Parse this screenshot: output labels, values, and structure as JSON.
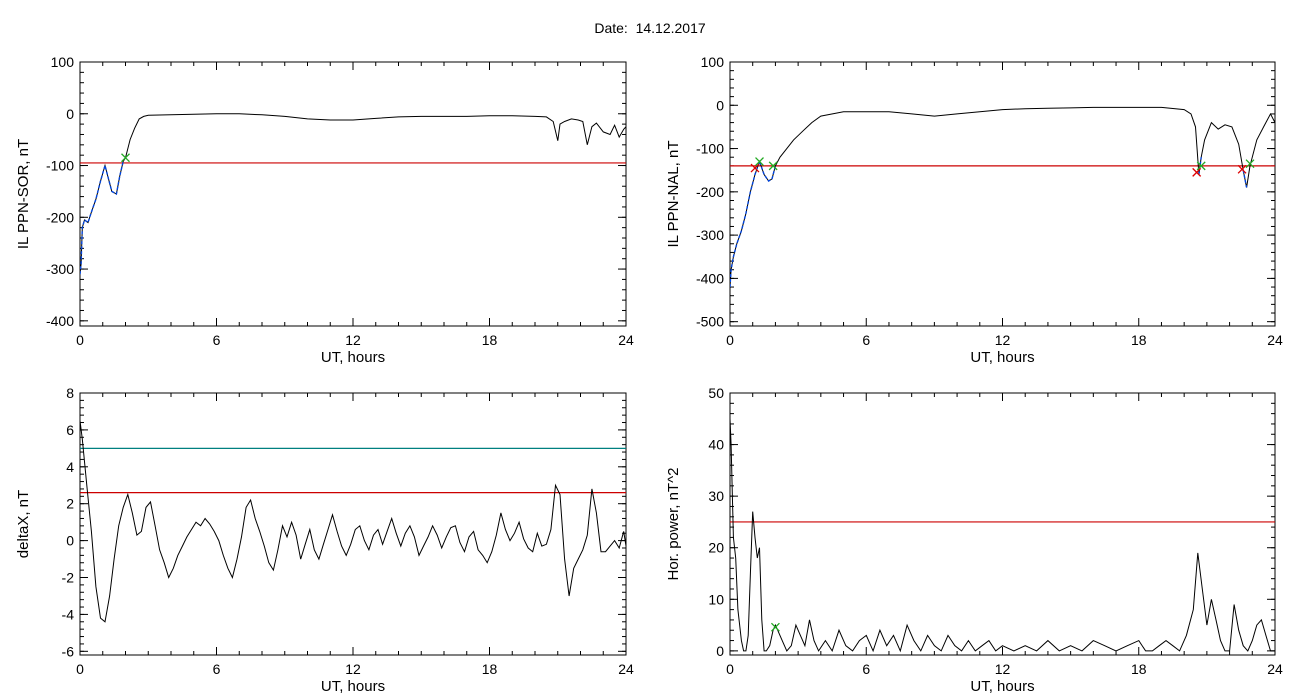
{
  "header": {
    "date_label": "Date:",
    "date_value": "14.12.2017"
  },
  "colors": {
    "trace": "#000000",
    "threshold_red": "#cc0000",
    "threshold_teal": "#008080",
    "segment_blue": "#0044dd",
    "marker_green": "#22aa22",
    "marker_red": "#dd0000"
  },
  "chart_data": [
    {
      "type": "line",
      "title": "",
      "xlabel": "UT, hours",
      "ylabel": "IL PPN-SOR, nT",
      "xlim": [
        0,
        24
      ],
      "ylim": [
        -410,
        100
      ],
      "xticks": [
        0,
        6,
        12,
        18,
        24
      ],
      "yticks": [
        -400,
        -300,
        -200,
        -100,
        0,
        100
      ],
      "threshold": {
        "value": -95,
        "color": "#cc0000"
      },
      "series": [
        {
          "x": [
            0,
            0.05,
            0.1,
            0.2,
            0.35,
            0.5,
            0.7,
            0.9,
            1.1,
            1.25,
            1.4,
            1.6,
            1.75,
            1.9,
            2.0,
            2.2,
            2.4,
            2.6,
            2.8,
            3,
            4,
            5,
            6,
            7,
            8,
            9,
            10,
            11,
            12,
            13,
            14,
            15,
            16,
            17,
            18,
            19,
            20,
            20.5,
            20.8,
            21.0,
            21.1,
            21.3,
            21.6,
            21.9,
            22.1,
            22.3,
            22.5,
            22.7,
            23.0,
            23.3,
            23.5,
            23.7,
            23.9,
            24
          ],
          "y": [
            -310,
            -290,
            -220,
            -205,
            -210,
            -190,
            -165,
            -130,
            -100,
            -125,
            -150,
            -155,
            -120,
            -92,
            -85,
            -50,
            -28,
            -10,
            -5,
            -3,
            -2,
            -1,
            0,
            0,
            -2,
            -5,
            -10,
            -12,
            -12,
            -9,
            -6,
            -5,
            -5,
            -5,
            -4,
            -4,
            -5,
            -6,
            -15,
            -52,
            -20,
            -15,
            -10,
            -12,
            -15,
            -60,
            -25,
            -18,
            -35,
            -40,
            -22,
            -45,
            -30,
            -25
          ]
        }
      ],
      "segments": [
        {
          "x_from": 0,
          "x_to": 1.95,
          "color": "#0044dd"
        }
      ],
      "markers": [
        {
          "x": 2.0,
          "y": -85,
          "symbol": "x",
          "color": "#22aa22"
        }
      ]
    },
    {
      "type": "line",
      "title": "",
      "xlabel": "UT, hours",
      "ylabel": "IL PPN-NAL, nT",
      "xlim": [
        0,
        24
      ],
      "ylim": [
        -510,
        100
      ],
      "xticks": [
        0,
        6,
        12,
        18,
        24
      ],
      "yticks": [
        -500,
        -400,
        -300,
        -200,
        -100,
        0,
        100
      ],
      "threshold": {
        "value": -140,
        "color": "#cc0000"
      },
      "series": [
        {
          "x": [
            0,
            0.05,
            0.15,
            0.3,
            0.5,
            0.7,
            0.9,
            1.1,
            1.3,
            1.5,
            1.7,
            1.85,
            2.0,
            2.2,
            2.5,
            2.8,
            3.2,
            3.6,
            4,
            5,
            6,
            7,
            8,
            9,
            10,
            11,
            12,
            13,
            14,
            15,
            16,
            17,
            18,
            19,
            20,
            20.3,
            20.5,
            20.65,
            20.75,
            20.9,
            21.2,
            21.5,
            21.8,
            22.1,
            22.4,
            22.6,
            22.75,
            22.9,
            23.2,
            23.5,
            23.8,
            24
          ],
          "y": [
            -420,
            -380,
            -350,
            -320,
            -290,
            -250,
            -200,
            -160,
            -130,
            -160,
            -175,
            -170,
            -140,
            -120,
            -100,
            -80,
            -60,
            -40,
            -25,
            -15,
            -15,
            -15,
            -20,
            -25,
            -20,
            -15,
            -10,
            -8,
            -7,
            -6,
            -5,
            -5,
            -5,
            -5,
            -10,
            -20,
            -50,
            -160,
            -120,
            -80,
            -40,
            -55,
            -45,
            -50,
            -90,
            -150,
            -190,
            -140,
            -80,
            -50,
            -20,
            -40
          ]
        }
      ],
      "segments": [
        {
          "x_from": 0,
          "x_to": 2.0,
          "color": "#0044dd"
        },
        {
          "x_from": 20.6,
          "x_to": 20.8,
          "color": "#0044dd"
        },
        {
          "x_from": 22.6,
          "x_to": 22.85,
          "color": "#0044dd"
        }
      ],
      "markers": [
        {
          "x": 1.3,
          "y": -130,
          "symbol": "x",
          "color": "#22aa22"
        },
        {
          "x": 1.9,
          "y": -140,
          "symbol": "x",
          "color": "#22aa22"
        },
        {
          "x": 20.75,
          "y": -140,
          "symbol": "x",
          "color": "#22aa22"
        },
        {
          "x": 22.9,
          "y": -135,
          "symbol": "x",
          "color": "#22aa22"
        },
        {
          "x": 20.55,
          "y": -155,
          "symbol": "x",
          "color": "#dd0000"
        },
        {
          "x": 22.55,
          "y": -148,
          "symbol": "x",
          "color": "#dd0000"
        },
        {
          "x": 1.1,
          "y": -145,
          "symbol": "x",
          "color": "#dd0000"
        }
      ]
    },
    {
      "type": "line",
      "title": "",
      "xlabel": "UT, hours",
      "ylabel": "deltaX, nT",
      "xlim": [
        0,
        24
      ],
      "ylim": [
        -6.2,
        8
      ],
      "xticks": [
        0,
        6,
        12,
        18,
        24
      ],
      "yticks": [
        -6,
        -4,
        -2,
        0,
        2,
        4,
        6,
        8
      ],
      "threshold": {
        "value": 2.6,
        "color": "#cc0000"
      },
      "threshold2": {
        "value": 5.0,
        "color": "#008080"
      },
      "series": [
        {
          "x": [
            0,
            0.1,
            0.3,
            0.5,
            0.7,
            0.9,
            1.1,
            1.3,
            1.5,
            1.7,
            1.9,
            2.1,
            2.3,
            2.5,
            2.7,
            2.9,
            3.1,
            3.3,
            3.5,
            3.7,
            3.9,
            4.1,
            4.3,
            4.5,
            4.7,
            4.9,
            5.1,
            5.3,
            5.5,
            5.7,
            5.9,
            6.1,
            6.3,
            6.5,
            6.7,
            6.9,
            7.1,
            7.3,
            7.5,
            7.7,
            7.9,
            8.1,
            8.3,
            8.5,
            8.7,
            8.9,
            9.1,
            9.3,
            9.5,
            9.7,
            9.9,
            10.1,
            10.3,
            10.5,
            10.7,
            10.9,
            11.1,
            11.3,
            11.5,
            11.7,
            11.9,
            12.1,
            12.3,
            12.5,
            12.7,
            12.9,
            13.1,
            13.3,
            13.5,
            13.7,
            13.9,
            14.1,
            14.3,
            14.5,
            14.7,
            14.9,
            15.1,
            15.3,
            15.5,
            15.7,
            15.9,
            16.1,
            16.3,
            16.5,
            16.7,
            16.9,
            17.1,
            17.3,
            17.5,
            17.7,
            17.9,
            18.1,
            18.3,
            18.5,
            18.7,
            18.9,
            19.1,
            19.3,
            19.5,
            19.7,
            19.9,
            20.1,
            20.3,
            20.5,
            20.7,
            20.9,
            21.1,
            21.3,
            21.5,
            21.7,
            21.9,
            22.1,
            22.3,
            22.5,
            22.7,
            22.9,
            23.1,
            23.3,
            23.5,
            23.7,
            23.9,
            24
          ],
          "y": [
            6.5,
            5.5,
            3.0,
            0.5,
            -2.5,
            -4.2,
            -4.4,
            -3.0,
            -1.0,
            0.8,
            1.8,
            2.5,
            1.5,
            0.3,
            0.5,
            1.8,
            2.1,
            0.8,
            -0.5,
            -1.2,
            -2.0,
            -1.5,
            -0.8,
            -0.3,
            0.2,
            0.6,
            1.0,
            0.8,
            1.2,
            0.9,
            0.5,
            0.0,
            -0.8,
            -1.5,
            -2.0,
            -1.0,
            0.2,
            1.8,
            2.2,
            1.2,
            0.5,
            -0.3,
            -1.2,
            -1.6,
            -0.5,
            0.8,
            0.2,
            1.0,
            0.3,
            -1.0,
            -0.2,
            0.6,
            -0.5,
            -1.0,
            -0.2,
            0.6,
            1.4,
            0.5,
            -0.3,
            -0.8,
            -0.2,
            0.6,
            0.8,
            0.0,
            -0.5,
            0.3,
            0.6,
            -0.2,
            0.5,
            1.2,
            0.4,
            -0.3,
            0.4,
            0.8,
            0.2,
            -0.8,
            -0.3,
            0.2,
            0.8,
            0.3,
            -0.4,
            0.2,
            0.7,
            0.8,
            -0.1,
            -0.6,
            0.2,
            0.5,
            -0.5,
            -0.8,
            -1.2,
            -0.6,
            0.3,
            1.5,
            0.6,
            0.0,
            0.4,
            1.0,
            0.1,
            -0.4,
            -0.6,
            0.4,
            -0.3,
            -0.2,
            0.6,
            3.0,
            2.5,
            -1.0,
            -3.0,
            -1.5,
            -1.0,
            -0.5,
            0.3,
            2.8,
            1.5,
            -0.6,
            -0.6,
            -0.3,
            0.0,
            -0.4,
            0.5,
            -0.3
          ]
        }
      ]
    },
    {
      "type": "line",
      "title": "",
      "xlabel": "UT, hours",
      "ylabel": "Hor. power, nT^2",
      "xlim": [
        0,
        24
      ],
      "ylim": [
        -0.8,
        50
      ],
      "xticks": [
        0,
        6,
        12,
        18,
        24
      ],
      "yticks": [
        0,
        10,
        20,
        30,
        40,
        50
      ],
      "threshold": {
        "value": 25,
        "color": "#cc0000"
      },
      "series": [
        {
          "x": [
            0,
            0.05,
            0.15,
            0.25,
            0.35,
            0.5,
            0.6,
            0.7,
            0.8,
            0.9,
            1.0,
            1.1,
            1.2,
            1.3,
            1.4,
            1.5,
            1.6,
            1.75,
            1.9,
            2.0,
            2.1,
            2.3,
            2.5,
            2.7,
            2.9,
            3.1,
            3.3,
            3.5,
            3.7,
            3.9,
            4.2,
            4.5,
            4.8,
            5.1,
            5.4,
            5.7,
            6.0,
            6.3,
            6.6,
            6.9,
            7.2,
            7.5,
            7.8,
            8.1,
            8.4,
            8.7,
            9.0,
            9.3,
            9.6,
            9.9,
            10.2,
            10.5,
            10.8,
            11.1,
            11.4,
            11.7,
            12.0,
            12.5,
            13.0,
            13.5,
            14.0,
            14.5,
            15.0,
            15.5,
            16.0,
            16.5,
            17.0,
            17.5,
            18.0,
            18.3,
            18.6,
            18.9,
            19.2,
            19.5,
            19.8,
            20.1,
            20.4,
            20.6,
            20.8,
            21.0,
            21.2,
            21.4,
            21.6,
            21.8,
            22.0,
            22.2,
            22.4,
            22.6,
            22.8,
            23.0,
            23.2,
            23.4,
            23.6,
            23.8,
            24
          ],
          "y": [
            45,
            40,
            22,
            18,
            8,
            2,
            0,
            0,
            3,
            15,
            27,
            22,
            18,
            20,
            6,
            0,
            0,
            1,
            4,
            5,
            4,
            2,
            0,
            1,
            5,
            3,
            1,
            6,
            2,
            0,
            2,
            0,
            4,
            1,
            0,
            2,
            3,
            0,
            4,
            1,
            3,
            0,
            5,
            2,
            0,
            3,
            1,
            0,
            3,
            1,
            0,
            2,
            0,
            1,
            2,
            0,
            1,
            0,
            1,
            0,
            2,
            0,
            1,
            0,
            2,
            1,
            0,
            1,
            2,
            0,
            0,
            1,
            2,
            1,
            0,
            3,
            8,
            19,
            12,
            5,
            10,
            6,
            2,
            0,
            0,
            9,
            4,
            1,
            0,
            2,
            5,
            6,
            3,
            0,
            0
          ]
        }
      ],
      "markers": [
        {
          "x": 2.0,
          "y": 4.6,
          "symbol": "x",
          "color": "#22aa22"
        }
      ]
    }
  ]
}
